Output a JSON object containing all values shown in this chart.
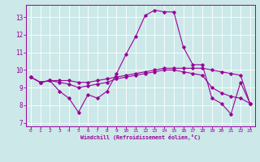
{
  "xlabel": "Windchill (Refroidissement éolien,°C)",
  "bg_color": "#cce8e8",
  "line_color": "#990099",
  "xlim": [
    -0.5,
    23.5
  ],
  "ylim": [
    6.8,
    13.7
  ],
  "yticks": [
    7,
    8,
    9,
    10,
    11,
    12,
    13
  ],
  "xticks": [
    0,
    1,
    2,
    3,
    4,
    5,
    6,
    7,
    8,
    9,
    10,
    11,
    12,
    13,
    14,
    15,
    16,
    17,
    18,
    19,
    20,
    21,
    22,
    23
  ],
  "line1_x": [
    0,
    1,
    2,
    3,
    4,
    5,
    6,
    7,
    8,
    9,
    10,
    11,
    12,
    13,
    14,
    15,
    16,
    17,
    18,
    19,
    20,
    21,
    22,
    23
  ],
  "line1_y": [
    9.6,
    9.3,
    9.4,
    8.8,
    8.4,
    7.6,
    8.6,
    8.4,
    8.8,
    9.8,
    10.9,
    11.9,
    13.1,
    13.4,
    13.3,
    13.3,
    11.3,
    10.3,
    10.3,
    8.4,
    8.1,
    7.5,
    9.3,
    8.1
  ],
  "line2_x": [
    0,
    1,
    2,
    3,
    4,
    5,
    6,
    7,
    8,
    9,
    10,
    11,
    12,
    13,
    14,
    15,
    16,
    17,
    18,
    19,
    20,
    21,
    22,
    23
  ],
  "line2_y": [
    9.6,
    9.3,
    9.4,
    9.4,
    9.4,
    9.3,
    9.3,
    9.4,
    9.5,
    9.6,
    9.7,
    9.8,
    9.9,
    10.0,
    10.1,
    10.1,
    10.1,
    10.1,
    10.1,
    10.0,
    9.9,
    9.8,
    9.7,
    8.1
  ],
  "line3_x": [
    0,
    1,
    2,
    3,
    4,
    5,
    6,
    7,
    8,
    9,
    10,
    11,
    12,
    13,
    14,
    15,
    16,
    17,
    18,
    19,
    20,
    21,
    22,
    23
  ],
  "line3_y": [
    9.6,
    9.3,
    9.4,
    9.3,
    9.2,
    9.0,
    9.1,
    9.2,
    9.3,
    9.5,
    9.6,
    9.7,
    9.8,
    9.9,
    10.0,
    10.0,
    9.9,
    9.8,
    9.7,
    9.0,
    8.7,
    8.5,
    8.4,
    8.1
  ]
}
